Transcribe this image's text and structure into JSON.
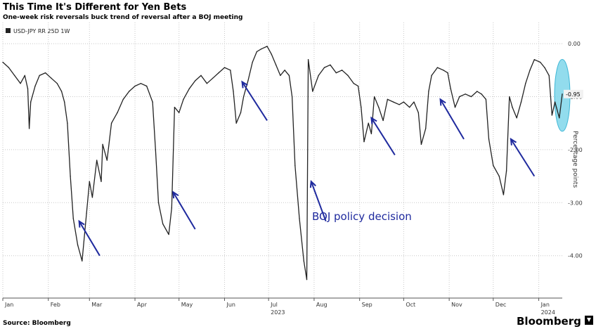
{
  "colors": {
    "series": "#222222",
    "arrow": "#1f2a9e",
    "highlight": "#7fd6ea",
    "grid": "#c8c8c8",
    "last_value_bg": "#f2f2f2"
  },
  "header": {
    "title": "This Time It's Different for Yen Bets",
    "subtitle": "One-week risk reversals buck trend of reversal after a BOJ meeting"
  },
  "footer": {
    "source": "Source: Bloomberg",
    "brand": "Bloomberg"
  },
  "annotation": {
    "text": "BOJ policy decision"
  },
  "chart_data": {
    "type": "line",
    "legend": {
      "label": "USD-JPY RR 25D 1W",
      "position": "top-left"
    },
    "ylabel": "Percentage points",
    "ylim": [
      -4.8,
      0.4
    ],
    "yticks": [
      0.0,
      -1.0,
      -2.0,
      -3.0,
      -4.0
    ],
    "ytick_labels": [
      "0.00",
      "-1.00",
      "-2.00",
      "-3.00",
      "-4.00"
    ],
    "grid": true,
    "last_value": -0.95,
    "last_value_label": "-0.95",
    "x_range": [
      "2023-01-01",
      "2024-01-17"
    ],
    "xticks": [
      {
        "label": "Jan",
        "date": "2023-01-01"
      },
      {
        "label": "Feb",
        "date": "2023-02-01"
      },
      {
        "label": "Mar",
        "date": "2023-03-01"
      },
      {
        "label": "Apr",
        "date": "2023-04-01"
      },
      {
        "label": "May",
        "date": "2023-05-01"
      },
      {
        "label": "Jun",
        "date": "2023-06-01"
      },
      {
        "label": "Jul",
        "date": "2023-07-01"
      },
      {
        "label": "Aug",
        "date": "2023-08-01"
      },
      {
        "label": "Sep",
        "date": "2023-09-01"
      },
      {
        "label": "Oct",
        "date": "2023-10-01"
      },
      {
        "label": "Nov",
        "date": "2023-11-01"
      },
      {
        "label": "Dec",
        "date": "2023-12-01"
      },
      {
        "label": "Jan",
        "date": "2024-01-01"
      }
    ],
    "year_labels": [
      {
        "label": "2023",
        "date": "2023-07-01"
      },
      {
        "label": "2024",
        "date": "2024-01-01"
      }
    ],
    "series": [
      {
        "name": "USD-JPY RR 25D 1W",
        "points": [
          [
            "2023-01-01",
            -0.35
          ],
          [
            "2023-01-05",
            -0.45
          ],
          [
            "2023-01-09",
            -0.6
          ],
          [
            "2023-01-13",
            -0.75
          ],
          [
            "2023-01-16",
            -0.6
          ],
          [
            "2023-01-18",
            -0.85
          ],
          [
            "2023-01-19",
            -1.6
          ],
          [
            "2023-01-20",
            -1.1
          ],
          [
            "2023-01-23",
            -0.8
          ],
          [
            "2023-01-26",
            -0.6
          ],
          [
            "2023-01-30",
            -0.55
          ],
          [
            "2023-02-03",
            -0.65
          ],
          [
            "2023-02-07",
            -0.75
          ],
          [
            "2023-02-10",
            -0.9
          ],
          [
            "2023-02-12",
            -1.1
          ],
          [
            "2023-02-14",
            -1.5
          ],
          [
            "2023-02-16",
            -2.5
          ],
          [
            "2023-02-18",
            -3.3
          ],
          [
            "2023-02-21",
            -3.8
          ],
          [
            "2023-02-24",
            -4.1
          ],
          [
            "2023-02-27",
            -3.2
          ],
          [
            "2023-03-01",
            -2.6
          ],
          [
            "2023-03-03",
            -2.9
          ],
          [
            "2023-03-06",
            -2.2
          ],
          [
            "2023-03-09",
            -2.6
          ],
          [
            "2023-03-10",
            -1.9
          ],
          [
            "2023-03-13",
            -2.2
          ],
          [
            "2023-03-16",
            -1.5
          ],
          [
            "2023-03-20",
            -1.3
          ],
          [
            "2023-03-24",
            -1.05
          ],
          [
            "2023-03-28",
            -0.9
          ],
          [
            "2023-04-01",
            -0.8
          ],
          [
            "2023-04-05",
            -0.75
          ],
          [
            "2023-04-09",
            -0.8
          ],
          [
            "2023-04-13",
            -1.1
          ],
          [
            "2023-04-15",
            -2.0
          ],
          [
            "2023-04-17",
            -3.0
          ],
          [
            "2023-04-20",
            -3.4
          ],
          [
            "2023-04-24",
            -3.6
          ],
          [
            "2023-04-26",
            -3.1
          ],
          [
            "2023-04-28",
            -1.2
          ],
          [
            "2023-05-01",
            -1.3
          ],
          [
            "2023-05-04",
            -1.05
          ],
          [
            "2023-05-08",
            -0.85
          ],
          [
            "2023-05-12",
            -0.7
          ],
          [
            "2023-05-16",
            -0.6
          ],
          [
            "2023-05-20",
            -0.75
          ],
          [
            "2023-05-24",
            -0.65
          ],
          [
            "2023-05-28",
            -0.55
          ],
          [
            "2023-06-01",
            -0.45
          ],
          [
            "2023-06-05",
            -0.5
          ],
          [
            "2023-06-07",
            -0.9
          ],
          [
            "2023-06-09",
            -1.5
          ],
          [
            "2023-06-12",
            -1.3
          ],
          [
            "2023-06-14",
            -1.0
          ],
          [
            "2023-06-17",
            -0.7
          ],
          [
            "2023-06-20",
            -0.35
          ],
          [
            "2023-06-23",
            -0.15
          ],
          [
            "2023-06-26",
            -0.1
          ],
          [
            "2023-06-30",
            -0.05
          ],
          [
            "2023-07-03",
            -0.2
          ],
          [
            "2023-07-06",
            -0.4
          ],
          [
            "2023-07-09",
            -0.6
          ],
          [
            "2023-07-12",
            -0.5
          ],
          [
            "2023-07-15",
            -0.6
          ],
          [
            "2023-07-17",
            -1.0
          ],
          [
            "2023-07-19",
            -2.3
          ],
          [
            "2023-07-22",
            -3.3
          ],
          [
            "2023-07-25",
            -4.1
          ],
          [
            "2023-07-27",
            -4.45
          ],
          [
            "2023-07-28",
            -0.3
          ],
          [
            "2023-07-31",
            -0.9
          ],
          [
            "2023-08-04",
            -0.6
          ],
          [
            "2023-08-08",
            -0.45
          ],
          [
            "2023-08-12",
            -0.4
          ],
          [
            "2023-08-16",
            -0.55
          ],
          [
            "2023-08-20",
            -0.5
          ],
          [
            "2023-08-24",
            -0.6
          ],
          [
            "2023-08-28",
            -0.75
          ],
          [
            "2023-08-31",
            -0.8
          ],
          [
            "2023-09-02",
            -1.2
          ],
          [
            "2023-09-04",
            -1.85
          ],
          [
            "2023-09-07",
            -1.5
          ],
          [
            "2023-09-09",
            -1.7
          ],
          [
            "2023-09-11",
            -1.0
          ],
          [
            "2023-09-14",
            -1.2
          ],
          [
            "2023-09-17",
            -1.45
          ],
          [
            "2023-09-20",
            -1.05
          ],
          [
            "2023-09-24",
            -1.1
          ],
          [
            "2023-09-28",
            -1.15
          ],
          [
            "2023-10-01",
            -1.1
          ],
          [
            "2023-10-05",
            -1.2
          ],
          [
            "2023-10-08",
            -1.1
          ],
          [
            "2023-10-11",
            -1.3
          ],
          [
            "2023-10-13",
            -1.9
          ],
          [
            "2023-10-16",
            -1.6
          ],
          [
            "2023-10-18",
            -0.9
          ],
          [
            "2023-10-20",
            -0.6
          ],
          [
            "2023-10-24",
            -0.45
          ],
          [
            "2023-10-28",
            -0.5
          ],
          [
            "2023-10-31",
            -0.55
          ],
          [
            "2023-11-02",
            -0.85
          ],
          [
            "2023-11-05",
            -1.2
          ],
          [
            "2023-11-08",
            -1.0
          ],
          [
            "2023-11-12",
            -0.95
          ],
          [
            "2023-11-16",
            -1.0
          ],
          [
            "2023-11-20",
            -0.9
          ],
          [
            "2023-11-23",
            -0.95
          ],
          [
            "2023-11-26",
            -1.05
          ],
          [
            "2023-11-28",
            -1.8
          ],
          [
            "2023-12-01",
            -2.3
          ],
          [
            "2023-12-05",
            -2.5
          ],
          [
            "2023-12-08",
            -2.85
          ],
          [
            "2023-12-10",
            -2.4
          ],
          [
            "2023-12-12",
            -1.0
          ],
          [
            "2023-12-14",
            -1.2
          ],
          [
            "2023-12-17",
            -1.4
          ],
          [
            "2023-12-20",
            -1.1
          ],
          [
            "2023-12-23",
            -0.75
          ],
          [
            "2023-12-26",
            -0.5
          ],
          [
            "2023-12-29",
            -0.3
          ],
          [
            "2024-01-02",
            -0.35
          ],
          [
            "2024-01-05",
            -0.45
          ],
          [
            "2024-01-08",
            -0.6
          ],
          [
            "2024-01-10",
            -1.35
          ],
          [
            "2024-01-12",
            -1.1
          ],
          [
            "2024-01-15",
            -1.4
          ],
          [
            "2024-01-17",
            -0.95
          ]
        ]
      }
    ],
    "arrows": [
      {
        "from": [
          "2023-03-08",
          -4.0
        ],
        "to": [
          "2023-02-22",
          -3.35
        ]
      },
      {
        "from": [
          "2023-05-12",
          -3.5
        ],
        "to": [
          "2023-04-27",
          -2.8
        ]
      },
      {
        "from": [
          "2023-06-30",
          -1.45
        ],
        "to": [
          "2023-06-13",
          -0.72
        ]
      },
      {
        "from": [
          "2023-08-09",
          -3.35
        ],
        "to": [
          "2023-07-30",
          -2.6
        ]
      },
      {
        "from": [
          "2023-09-25",
          -2.1
        ],
        "to": [
          "2023-09-09",
          -1.4
        ]
      },
      {
        "from": [
          "2023-11-11",
          -1.8
        ],
        "to": [
          "2023-10-26",
          -1.05
        ]
      },
      {
        "from": [
          "2023-12-29",
          -2.5
        ],
        "to": [
          "2023-12-13",
          -1.8
        ]
      }
    ],
    "highlight": {
      "date": "2024-01-17",
      "y_top": -0.35,
      "y_bottom": -1.6
    }
  }
}
